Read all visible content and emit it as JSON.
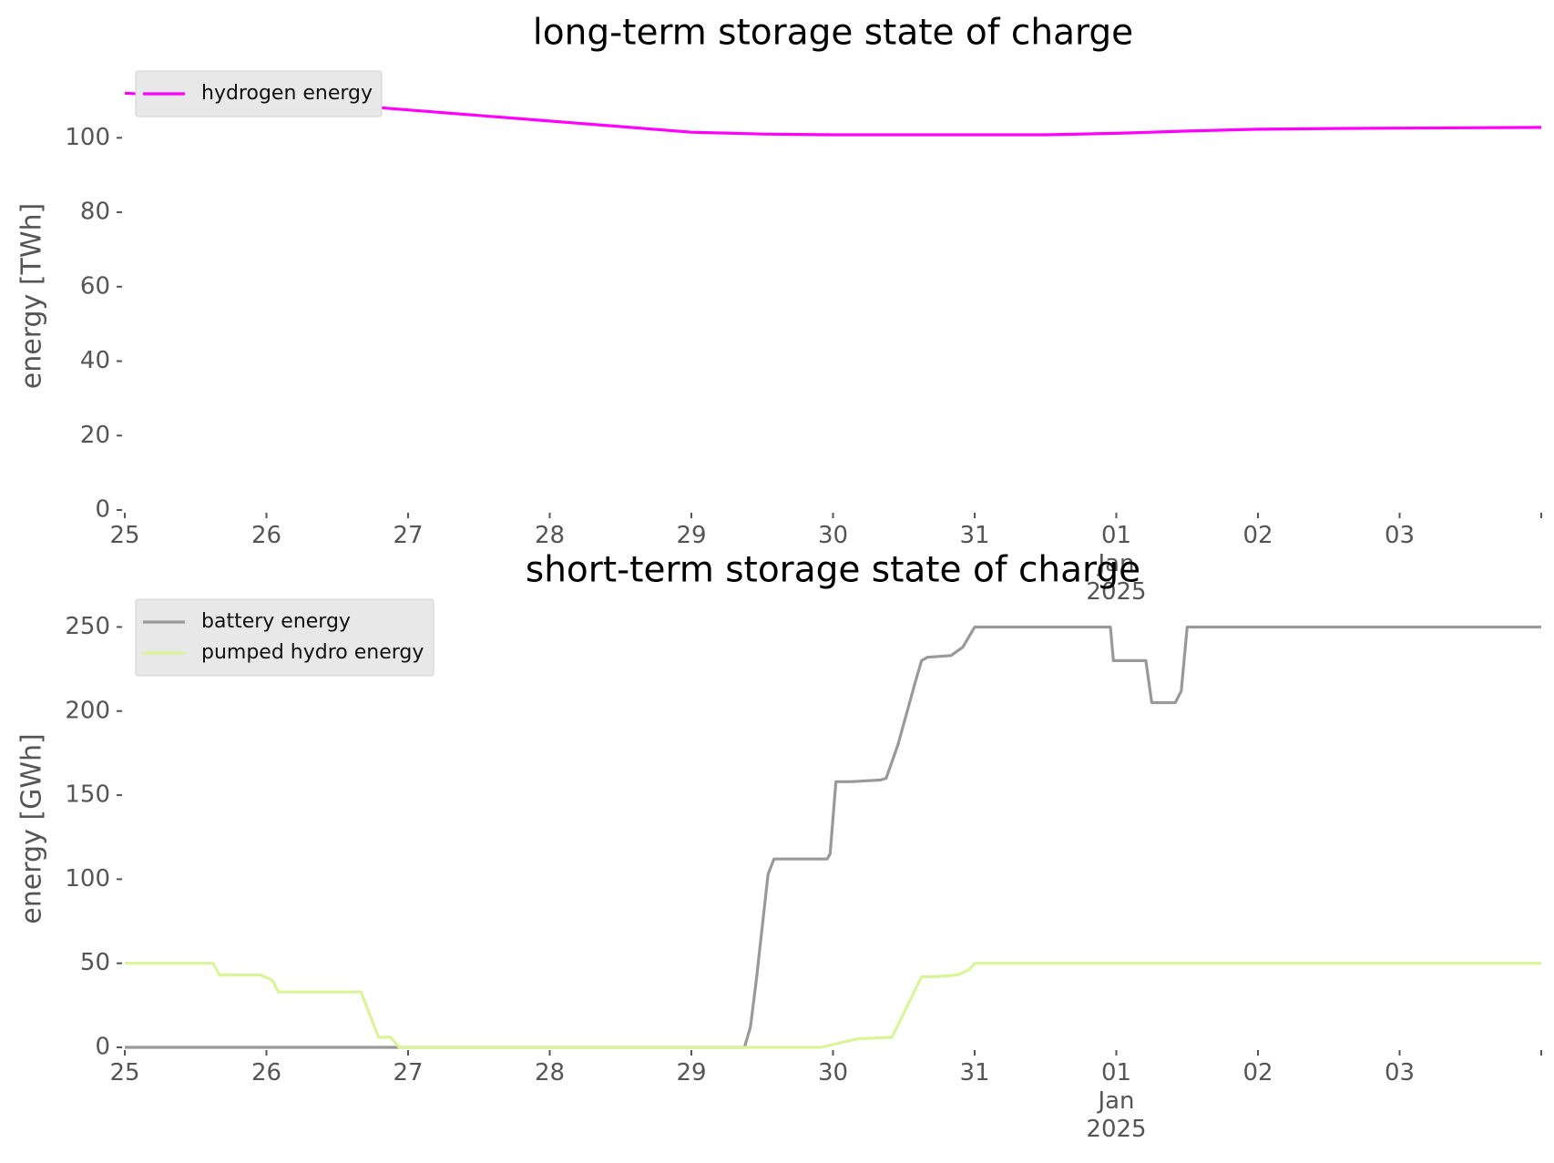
{
  "chart_data": [
    {
      "type": "line",
      "title": "long-term storage state of charge",
      "ylabel": "energy [TWh]",
      "xlabel": "",
      "xlim": [
        "2024-12-25",
        "2025-01-04"
      ],
      "ylim": [
        0,
        115
      ],
      "yticks": [
        0,
        20,
        40,
        60,
        80,
        100
      ],
      "xtick_labels": [
        "25",
        "26",
        "27",
        "28",
        "29",
        "30",
        "31",
        "01\nJan\n2025",
        "02",
        "03"
      ],
      "grid": false,
      "legend_position": "top-left",
      "series": [
        {
          "name": "hydrogen energy",
          "color": "#ff00ff",
          "x": [
            "2024-12-25 00:00",
            "2024-12-25 12:00",
            "2024-12-26 00:00",
            "2024-12-26 12:00",
            "2024-12-27 00:00",
            "2024-12-27 12:00",
            "2024-12-28 00:00",
            "2024-12-28 12:00",
            "2024-12-29 00:00",
            "2024-12-29 12:00",
            "2024-12-30 00:00",
            "2024-12-30 12:00",
            "2024-12-31 00:00",
            "2024-12-31 12:00",
            "2025-01-01 00:00",
            "2025-01-01 12:00",
            "2025-01-02 00:00",
            "2025-01-02 12:00",
            "2025-01-03 00:00",
            "2025-01-03 12:00",
            "2025-01-04 00:00"
          ],
          "y": [
            112,
            111,
            110,
            109,
            107.5,
            106,
            104.5,
            103,
            101.5,
            101,
            100.8,
            100.8,
            100.8,
            100.8,
            101.2,
            101.8,
            102.3,
            102.5,
            102.6,
            102.7,
            102.8
          ]
        }
      ]
    },
    {
      "type": "line",
      "title": "short-term storage state of charge",
      "ylabel": "energy [GWh]",
      "xlabel": "",
      "xlim": [
        "2024-12-25",
        "2025-01-04"
      ],
      "ylim": [
        0,
        260
      ],
      "yticks": [
        0,
        50,
        100,
        150,
        200,
        250
      ],
      "xtick_labels": [
        "25",
        "26",
        "27",
        "28",
        "29",
        "30",
        "31",
        "01\nJan\n2025",
        "02",
        "03"
      ],
      "grid": false,
      "legend_position": "top-left",
      "series": [
        {
          "name": "battery energy",
          "color": "#999999",
          "x": [
            "2024-12-25 00:00",
            "2024-12-29 09:00",
            "2024-12-29 10:00",
            "2024-12-29 11:00",
            "2024-12-29 13:00",
            "2024-12-29 14:00",
            "2024-12-29 16:00",
            "2024-12-29 23:00",
            "2024-12-29 23:30",
            "2024-12-30 00:30",
            "2024-12-30 03:00",
            "2024-12-30 08:00",
            "2024-12-30 09:00",
            "2024-12-30 11:00",
            "2024-12-30 14:00",
            "2024-12-30 15:00",
            "2024-12-30 16:00",
            "2024-12-30 20:00",
            "2024-12-30 22:00",
            "2024-12-31 00:00",
            "2024-12-31 23:00",
            "2024-12-31 23:30",
            "2025-01-01 05:00",
            "2025-01-01 06:00",
            "2025-01-01 10:00",
            "2025-01-01 11:00",
            "2025-01-01 12:00",
            "2025-01-02 00:00",
            "2025-01-04 00:00"
          ],
          "y": [
            0,
            0,
            12,
            40,
            103,
            112,
            112,
            112,
            115,
            158,
            158,
            159,
            160,
            180,
            218,
            230,
            232,
            233,
            238,
            250,
            250,
            230,
            230,
            205,
            205,
            212,
            250,
            250,
            250
          ]
        },
        {
          "name": "pumped hydro energy",
          "color": "#d9f598",
          "x": [
            "2024-12-25 00:00",
            "2024-12-25 15:00",
            "2024-12-25 16:00",
            "2024-12-25 23:00",
            "2024-12-26 01:00",
            "2024-12-26 02:00",
            "2024-12-26 14:00",
            "2024-12-26 16:00",
            "2024-12-26 19:00",
            "2024-12-26 21:00",
            "2024-12-26 22:30",
            "2024-12-29 22:00",
            "2024-12-30 04:00",
            "2024-12-30 10:00",
            "2024-12-30 15:00",
            "2024-12-30 17:00",
            "2024-12-30 21:00",
            "2024-12-30 23:00",
            "2024-12-31 00:00",
            "2025-01-04 00:00"
          ],
          "y": [
            50,
            50,
            43,
            43,
            40,
            33,
            33,
            33,
            6,
            6,
            0,
            0,
            5,
            6,
            42,
            42,
            43,
            46,
            50,
            50
          ]
        }
      ]
    }
  ]
}
